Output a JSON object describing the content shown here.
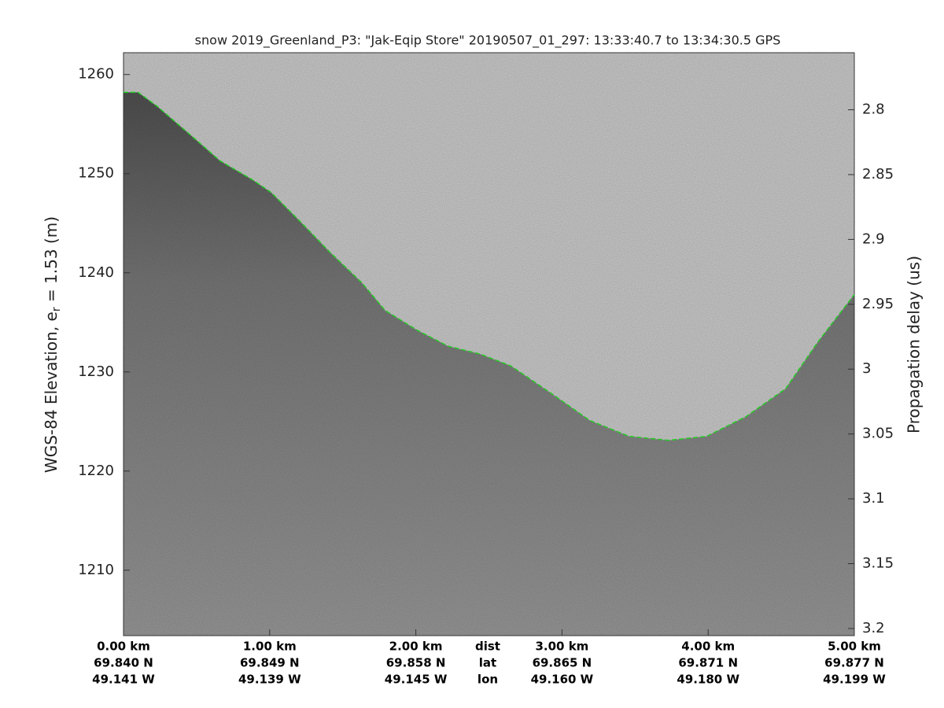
{
  "chart_data": {
    "type": "echogram",
    "title": "snow 2019_Greenland_P3: \"Jak-Eqip Store\"  20190507_01_297: 13:33:40.7 to 13:34:30.5 GPS",
    "ylabel_parts": [
      "WGS-84 Elevation, e",
      "r",
      " = 1.53 (m)"
    ],
    "y2label": "Propagation delay (us)",
    "xlim": [
      0,
      5
    ],
    "xticks": [
      {
        "value": 0,
        "label": "0.00 km"
      },
      {
        "value": 1,
        "label": "1.00 km"
      },
      {
        "value": 2,
        "label": "2.00 km"
      },
      {
        "value": 3,
        "label": "3.00 km"
      },
      {
        "value": 4,
        "label": "4.00 km"
      },
      {
        "value": 5,
        "label": "5.00 km"
      }
    ],
    "lat_labels": [
      "69.840 N",
      "69.849 N",
      "69.858 N",
      "69.865 N",
      "69.871 N",
      "69.877 N"
    ],
    "lon_labels": [
      "49.141 W",
      "49.139 W",
      "49.145 W",
      "49.160 W",
      "49.180 W",
      "49.199 W"
    ],
    "row_labels": [
      "dist",
      "lat",
      "lon"
    ],
    "ylim": [
      1203.4,
      1262.2
    ],
    "yticks": [
      1210,
      1220,
      1230,
      1240,
      1250,
      1260
    ],
    "y2lim": [
      3.2055,
      2.756
    ],
    "y2ticks": [
      2.8,
      2.85,
      2.9,
      2.95,
      3,
      3.05,
      3.1,
      3.15,
      3.2
    ],
    "series": [
      {
        "name": "surface",
        "color": "#22cc22",
        "x": [
          0,
          0.1,
          0.23,
          0.45,
          0.66,
          0.88,
          1.01,
          1.2,
          1.41,
          1.63,
          1.79,
          2.01,
          2.22,
          2.44,
          2.65,
          2.92,
          3.19,
          3.46,
          3.73,
          3.99,
          4.26,
          4.53,
          4.75,
          5.0
        ],
        "values": [
          1258.2,
          1258.2,
          1256.8,
          1254.0,
          1251.3,
          1249.4,
          1248.1,
          1245.3,
          1242.1,
          1239.0,
          1236.2,
          1234.2,
          1232.6,
          1231.8,
          1230.6,
          1227.9,
          1225.1,
          1223.5,
          1223.1,
          1223.5,
          1225.5,
          1228.3,
          1233.0,
          1237.8
        ]
      }
    ]
  }
}
